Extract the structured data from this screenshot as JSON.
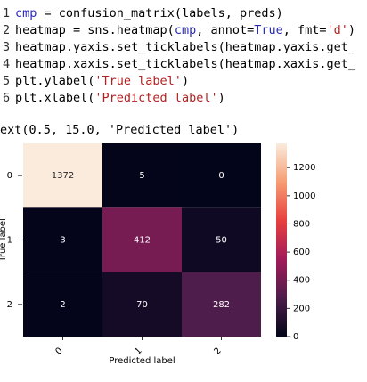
{
  "code": {
    "lines": [
      {
        "number": 1,
        "tokens": [
          {
            "text": "cmp",
            "color": "#2a2ab8"
          },
          {
            "text": " = confusion_matrix(labels, preds)",
            "color": "#000000"
          }
        ]
      },
      {
        "number": 2,
        "tokens": [
          {
            "text": "heatmap = sns.heatmap(",
            "color": "#000000"
          },
          {
            "text": "cmp",
            "color": "#2a2ab8"
          },
          {
            "text": ", annot=",
            "color": "#000000"
          },
          {
            "text": "True",
            "color": "#2a2ab8"
          },
          {
            "text": ", fmt=",
            "color": "#000000"
          },
          {
            "text": "'d'",
            "color": "#b22222"
          },
          {
            "text": ")",
            "color": "#000000"
          }
        ]
      },
      {
        "number": 3,
        "tokens": [
          {
            "text": "heatmap.yaxis.set_ticklabels(heatmap.yaxis.get_",
            "color": "#000000"
          }
        ]
      },
      {
        "number": 4,
        "tokens": [
          {
            "text": "heatmap.xaxis.set_ticklabels(heatmap.xaxis.get_",
            "color": "#000000"
          }
        ]
      },
      {
        "number": 5,
        "tokens": [
          {
            "text": "plt.ylabel(",
            "color": "#000000"
          },
          {
            "text": "'True label'",
            "color": "#b22222"
          },
          {
            "text": ")",
            "color": "#000000"
          }
        ]
      },
      {
        "number": 6,
        "tokens": [
          {
            "text": "plt.xlabel(",
            "color": "#000000"
          },
          {
            "text": "'Predicted label'",
            "color": "#b22222"
          },
          {
            "text": ")",
            "color": "#000000"
          }
        ]
      }
    ]
  },
  "output": {
    "text": "ext(0.5, 15.0, 'Predicted label')"
  },
  "chart_data": {
    "type": "heatmap",
    "x_categories": [
      "0",
      "1",
      "2"
    ],
    "y_categories": [
      "0",
      "1",
      "2"
    ],
    "values": [
      [
        1372,
        5,
        0
      ],
      [
        3,
        412,
        50
      ],
      [
        2,
        70,
        282
      ]
    ],
    "xlabel": "Predicted label",
    "ylabel": "True label",
    "colormap": "rocket",
    "clim": [
      0,
      1372
    ],
    "cticks": [
      0,
      200,
      400,
      600,
      800,
      1000,
      1200
    ]
  }
}
